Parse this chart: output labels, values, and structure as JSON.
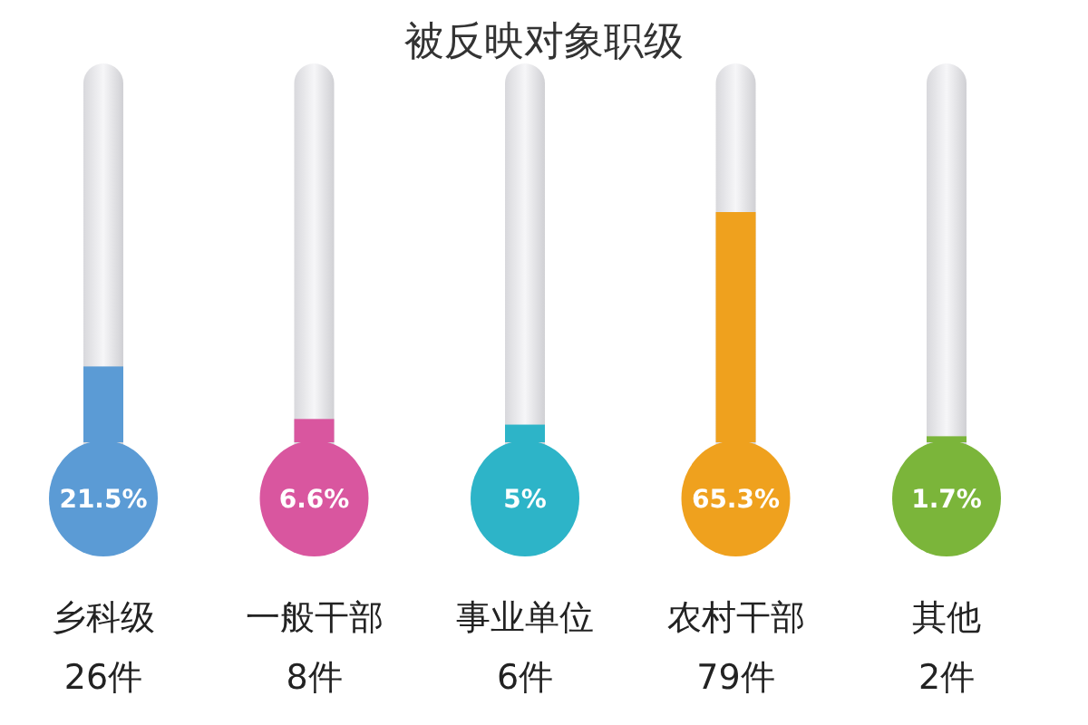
{
  "chart_data": {
    "type": "bar",
    "title": "被反映对象职级",
    "categories": [
      "乡科级\n26件",
      "一般干部\n8件",
      "事业单位\n6件",
      "农村干部\n79件",
      "其他\n2件"
    ],
    "values": [
      21.5,
      6.6,
      5,
      65.3,
      1.7
    ],
    "colors": [
      "#5b9bd5",
      "#d9569f",
      "#2db4c8",
      "#efa11e",
      "#7bb53a"
    ],
    "value_labels": [
      "21.5%",
      "6.6%",
      "5%",
      "65.3%",
      "1.7%"
    ]
  }
}
